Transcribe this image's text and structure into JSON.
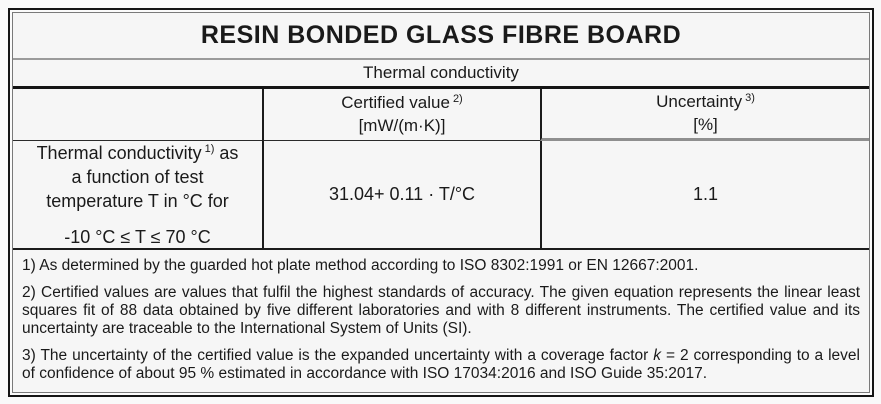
{
  "page": {
    "background": "#f6f6f6",
    "text_color": "#1a1a1a",
    "border_color": "#141414"
  },
  "table": {
    "title": "RESIN BONDED GLASS FIBRE BOARD",
    "subtitle": "Thermal conductivity",
    "header": {
      "certified_label": "Certified value",
      "certified_ref": "2)",
      "certified_unit": "[mW/(m·K)]",
      "uncertainty_label": "Uncertainty",
      "uncertainty_ref": "3)",
      "uncertainty_unit": "[%]"
    },
    "row": {
      "property_before_ref": "Thermal conductivity",
      "property_ref": "1)",
      "property_after_ref": " as a function of test temperature T in °C for",
      "temperature_range": "-10 °C ≤ T ≤ 70 °C",
      "certified_value": "31.04+ 0.11 · T/°C",
      "uncertainty_value": "1.1"
    }
  },
  "footnotes": {
    "f1": "1) As determined by the guarded hot plate method according to ISO 8302:1991 or EN 12667:2001.",
    "f2": "2) Certified values are values that fulfil the highest standards of accuracy. The given equation represents the linear least squares fit of 88 data obtained by five different laboratories and with 8 different instruments. The certified value and its uncertainty are traceable to the International System of Units (SI).",
    "f3_before_k": "3) The uncertainty of the certified value is the expanded uncertainty with a coverage factor ",
    "f3_k": "k",
    "f3_after_k": " = 2 corresponding to a level of confidence of about 95 % estimated in accordance with ISO 17034:2016 and ISO Guide 35:2017."
  }
}
